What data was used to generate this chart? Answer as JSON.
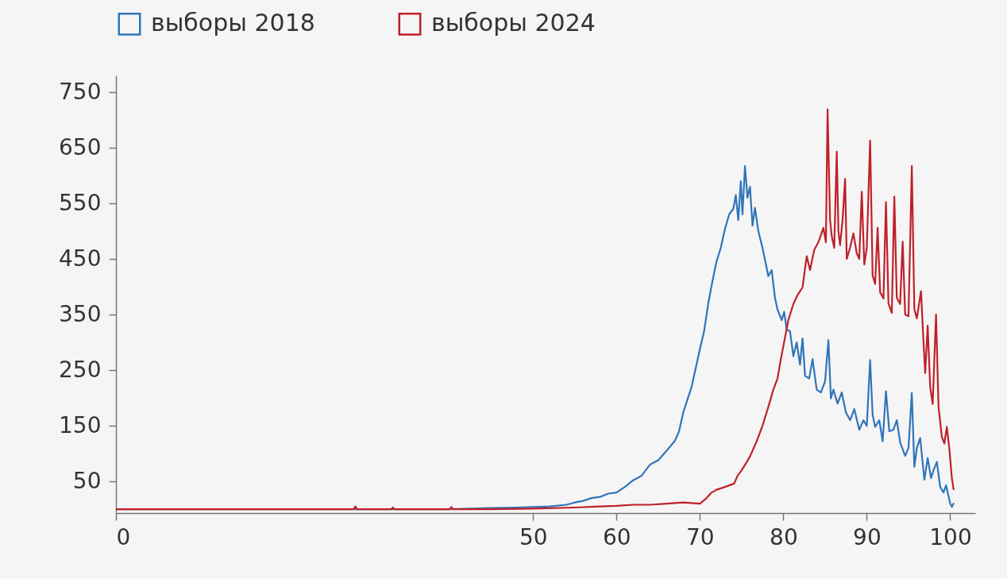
{
  "chart_data": {
    "type": "line",
    "legend": "top left",
    "xlim": [
      0,
      103
    ],
    "xticks": [
      0,
      50,
      60,
      70,
      80,
      90,
      100
    ],
    "ylim": [
      -7,
      780
    ],
    "yticks": [
      50,
      150,
      250,
      350,
      450,
      550,
      650,
      750
    ],
    "grid": false,
    "series": [
      {
        "name": "выборы 2018",
        "color": "#2f75b9",
        "x": [
          0,
          30,
          40,
          45,
          48,
          50,
          52,
          54,
          55,
          56,
          57,
          58,
          59,
          60,
          61,
          62,
          63,
          64,
          65,
          66,
          67,
          67.5,
          68,
          69,
          70,
          70.5,
          71,
          71.5,
          72,
          72.5,
          73,
          73.5,
          74,
          74.3,
          74.6,
          74.9,
          75.1,
          75.4,
          75.7,
          76,
          76.3,
          76.6,
          77,
          77.5,
          78.2,
          78.6,
          79,
          79.3,
          79.8,
          80.1,
          80.4,
          80.8,
          81.2,
          81.6,
          82,
          82.3,
          82.6,
          83.1,
          83.5,
          84,
          84.5,
          85,
          85.4,
          85.7,
          86,
          86.5,
          87,
          87.5,
          88,
          88.5,
          89.1,
          89.6,
          90,
          90.4,
          90.7,
          91,
          91.5,
          91.9,
          92.3,
          92.7,
          93.2,
          93.6,
          94,
          94.6,
          95,
          95.4,
          95.7,
          96,
          96.4,
          96.9,
          97.3,
          97.7,
          98,
          98.4,
          98.8,
          99.2,
          99.5,
          100,
          100.2,
          100.4
        ],
        "values": [
          0,
          0,
          0,
          2,
          3,
          4,
          5,
          8,
          12,
          15,
          20,
          22,
          28,
          30,
          40,
          52,
          60,
          80,
          88,
          105,
          123,
          140,
          174,
          220,
          288,
          320,
          370,
          410,
          446,
          470,
          504,
          530,
          540,
          565,
          520,
          590,
          530,
          617,
          560,
          580,
          510,
          542,
          500,
          470,
          419,
          430,
          380,
          359,
          340,
          355,
          323,
          320,
          275,
          300,
          260,
          307,
          240,
          235,
          270,
          215,
          210,
          230,
          304,
          199,
          215,
          190,
          210,
          174,
          160,
          180,
          143,
          160,
          150,
          268,
          170,
          148,
          160,
          122,
          212,
          140,
          143,
          160,
          120,
          96,
          110,
          209,
          76,
          110,
          128,
          53,
          92,
          56,
          70,
          85,
          40,
          30,
          43,
          10,
          4,
          10
        ]
      },
      {
        "name": "выборы 2024",
        "color": "#c0202a",
        "x": [
          0,
          28.5,
          28.7,
          28.9,
          33,
          33.2,
          33.4,
          40,
          40.2,
          40.4,
          45,
          50,
          55,
          58,
          60,
          62,
          64,
          66,
          68,
          70,
          70.8,
          71.4,
          72,
          73,
          74.1,
          74.5,
          75,
          75.5,
          76,
          76.8,
          77.5,
          78.2,
          78.8,
          79.3,
          79.7,
          80.1,
          80.6,
          81.2,
          81.7,
          82.3,
          82.8,
          83.2,
          83.7,
          84.2,
          84.8,
          85.1,
          85.3,
          85.6,
          85.8,
          86.1,
          86.4,
          86.6,
          86.8,
          87.1,
          87.4,
          87.6,
          88,
          88.4,
          88.8,
          89.1,
          89.4,
          89.7,
          90,
          90.4,
          90.7,
          91,
          91.3,
          91.6,
          92,
          92.3,
          92.6,
          93,
          93.3,
          93.6,
          94,
          94.3,
          94.6,
          95,
          95.4,
          95.7,
          96,
          96.5,
          96.8,
          97,
          97.3,
          97.6,
          97.9,
          98.3,
          98.6,
          99,
          99.3,
          99.6,
          99.9,
          100.2,
          100.4
        ],
        "values": [
          0,
          0,
          5,
          0,
          0,
          3,
          0,
          0,
          4,
          0,
          0,
          1,
          3,
          5,
          6,
          8,
          8,
          10,
          12,
          10,
          20,
          30,
          35,
          40,
          46,
          60,
          70,
          82,
          95,
          122,
          150,
          184,
          215,
          235,
          270,
          301,
          340,
          369,
          385,
          399,
          455,
          430,
          466,
          480,
          506,
          480,
          719,
          520,
          491,
          470,
          643,
          500,
          475,
          520,
          594,
          450,
          470,
          496,
          460,
          450,
          571,
          440,
          470,
          663,
          420,
          405,
          506,
          390,
          379,
          552,
          370,
          353,
          562,
          380,
          369,
          481,
          350,
          347,
          617,
          360,
          343,
          392,
          300,
          245,
          330,
          220,
          189,
          350,
          184,
          130,
          118,
          148,
          108,
          56,
          36
        ]
      }
    ]
  }
}
